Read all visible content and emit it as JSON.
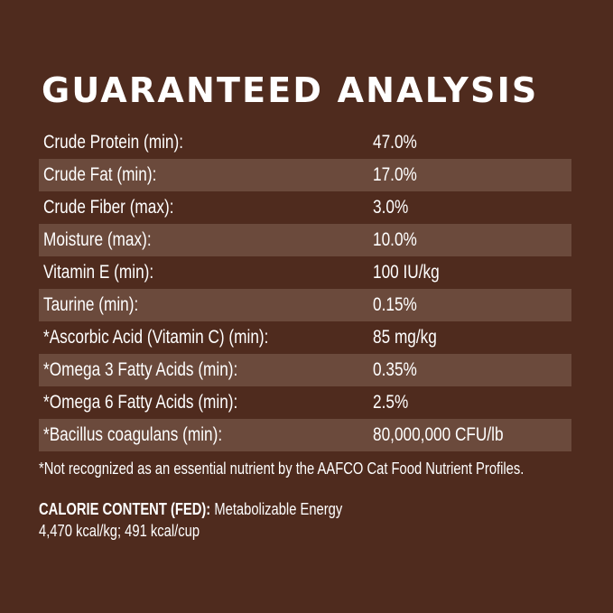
{
  "title": "GUARANTEED ANALYSIS",
  "rows": [
    {
      "label": "Crude Protein (min):",
      "value": "47.0%"
    },
    {
      "label": "Crude Fat (min):",
      "value": "17.0%"
    },
    {
      "label": "Crude Fiber (max):",
      "value": "3.0%"
    },
    {
      "label": "Moisture (max):",
      "value": "10.0%"
    },
    {
      "label": "Vitamin E (min):",
      "value": "100 IU/kg"
    },
    {
      "label": "Taurine (min):",
      "value": "0.15%"
    },
    {
      "label": "*Ascorbic Acid (Vitamin C) (min):",
      "value": "85 mg/kg"
    },
    {
      "label": "*Omega 3 Fatty Acids (min):",
      "value": "0.35%"
    },
    {
      "label": "*Omega 6 Fatty Acids (min):",
      "value": "2.5%"
    },
    {
      "label": "*Bacillus coagulans (min):",
      "value": "80,000,000 CFU/lb"
    }
  ],
  "footnote": "*Not recognized as an essential nutrient by the AAFCO Cat Food Nutrient Profiles.",
  "calorie": {
    "heading": "CALORIE CONTENT (FED):",
    "text": " Metabolizable Energy",
    "values": "4,470 kcal/kg; 491 kcal/cup"
  },
  "colors": {
    "background": "#4f2b1e",
    "stripe": "#6b4a3c",
    "text": "#ffffff"
  }
}
